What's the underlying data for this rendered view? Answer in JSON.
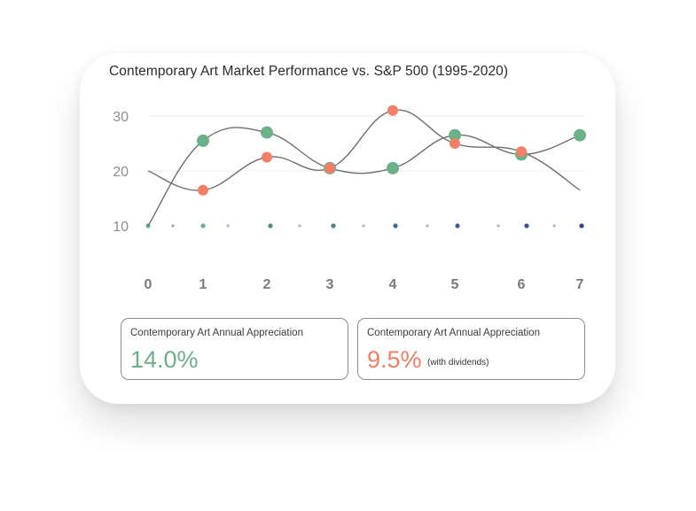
{
  "chart_data": {
    "type": "line",
    "title": "Contemporary Art Market Performance vs. S&P 500 (1995-2020)",
    "xlabel": "",
    "ylabel": "",
    "x_ticks": [
      0,
      1,
      2,
      3,
      4,
      5,
      6,
      7
    ],
    "y_ticks": [
      10,
      20,
      30
    ],
    "ylim": [
      10,
      31.5
    ],
    "xlim": [
      0,
      7
    ],
    "grid": "horizontal",
    "series": [
      {
        "color": "#6ab187",
        "x": [
          0,
          1,
          2,
          3,
          4,
          5,
          6,
          7
        ],
        "values": [
          10,
          25.5,
          27,
          20.5,
          20.5,
          26.5,
          23,
          26.5
        ],
        "marker_points": [
          1,
          2,
          3,
          4,
          5,
          6,
          7
        ]
      },
      {
        "color": "#f47e66",
        "x": [
          0,
          1,
          2,
          3,
          4,
          5,
          6,
          7
        ],
        "values": [
          20,
          16.5,
          22.5,
          20.5,
          31,
          25,
          23.5,
          16.5
        ],
        "marker_points": [
          1,
          2,
          3,
          4,
          5,
          6
        ]
      }
    ]
  },
  "stats": [
    {
      "label": "Contemporary Art Annual Appreciation",
      "value": "14.0%",
      "note": "",
      "color": "#6ab187"
    },
    {
      "label": "Contemporary Art Annual Appreciation",
      "value": "9.5%",
      "note": "(with dividends)",
      "color": "#f47e66"
    }
  ]
}
